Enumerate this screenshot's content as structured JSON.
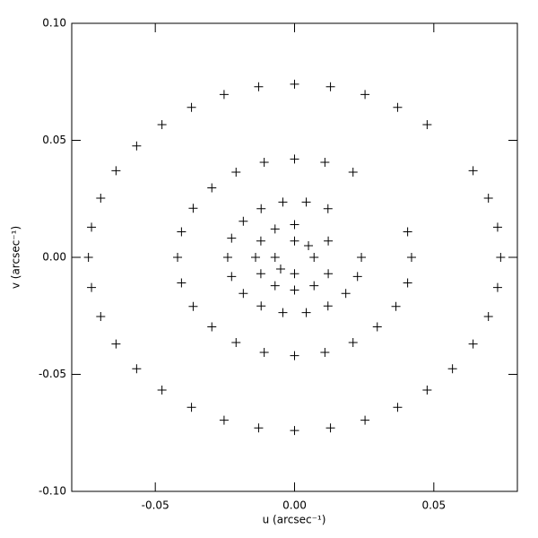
{
  "chart_data": {
    "type": "scatter",
    "xlabel": "u (arcsec⁻¹)",
    "ylabel": "v (arcsec⁻¹)",
    "xlim": [
      -0.08,
      0.08
    ],
    "ylim": [
      -0.1,
      0.1
    ],
    "xticks": [
      -0.05,
      {
        "value": 0,
        "label": "0.00"
      },
      0.05
    ],
    "yticks": [
      {
        "value": -0.1,
        "label": "-0.10"
      },
      -0.05,
      {
        "value": 0,
        "label": "0.00"
      },
      0.05,
      {
        "value": 0.1,
        "label": "0.10"
      }
    ],
    "marker": "+",
    "color": "#000000",
    "x": [
      0.074,
      0.0729,
      0.0696,
      0.0641,
      0.0476,
      0.037,
      0.0253,
      0.0129,
      0,
      -0.0129,
      -0.0253,
      -0.037,
      -0.0476,
      -0.0567,
      -0.0641,
      -0.0696,
      -0.0729,
      -0.074,
      -0.0729,
      -0.0696,
      -0.0641,
      -0.0567,
      -0.0476,
      -0.037,
      -0.0253,
      -0.0129,
      0,
      0.0129,
      0.0253,
      0.037,
      0.0476,
      0.0567,
      0.0641,
      0.0696,
      0.0729,
      0.042,
      0.0406,
      0.021,
      0.0109,
      0,
      -0.0109,
      -0.021,
      -0.0297,
      -0.0364,
      -0.0406,
      -0.042,
      -0.0406,
      -0.0364,
      -0.0297,
      -0.021,
      -0.0109,
      0,
      0.0109,
      0.021,
      0.0297,
      0.0364,
      0.0406,
      0.024,
      0.012,
      0.0042,
      -0.0042,
      -0.012,
      -0.0184,
      -0.0226,
      -0.024,
      -0.0226,
      -0.0184,
      -0.012,
      -0.0042,
      0.0042,
      0.012,
      0.0184,
      0.0226,
      0.0121,
      0,
      -0.007,
      -0.0121,
      -0.014,
      -0.0121,
      -0.007,
      0,
      0.007,
      0.0121,
      0.007,
      0,
      -0.007,
      0,
      0.005,
      -0.005
    ],
    "y": [
      0,
      0.0129,
      0.0253,
      0.037,
      0.0567,
      0.0641,
      0.0696,
      0.0729,
      0.074,
      0.0729,
      0.0696,
      0.0641,
      0.0567,
      0.0476,
      0.037,
      0.0253,
      0.0129,
      0,
      -0.0129,
      -0.0253,
      -0.037,
      -0.0476,
      -0.0567,
      -0.0641,
      -0.0696,
      -0.0729,
      -0.074,
      -0.0729,
      -0.0696,
      -0.0641,
      -0.0567,
      -0.0476,
      -0.037,
      -0.0253,
      -0.0129,
      0,
      0.0109,
      0.0364,
      0.0406,
      0.042,
      0.0406,
      0.0364,
      0.0297,
      0.021,
      0.0109,
      0,
      -0.0109,
      -0.021,
      -0.0297,
      -0.0364,
      -0.0406,
      -0.042,
      -0.0406,
      -0.0364,
      -0.0297,
      -0.021,
      -0.0109,
      0,
      0.0208,
      0.0236,
      0.0236,
      0.0208,
      0.0154,
      0.0082,
      0,
      -0.0082,
      -0.0154,
      -0.0208,
      -0.0236,
      -0.0236,
      -0.0208,
      -0.0154,
      -0.0082,
      0.007,
      0.014,
      0.0121,
      0.007,
      0,
      -0.007,
      -0.0121,
      -0.014,
      -0.0121,
      -0.007,
      0,
      0.007,
      0,
      -0.007,
      0.005,
      -0.005
    ]
  }
}
